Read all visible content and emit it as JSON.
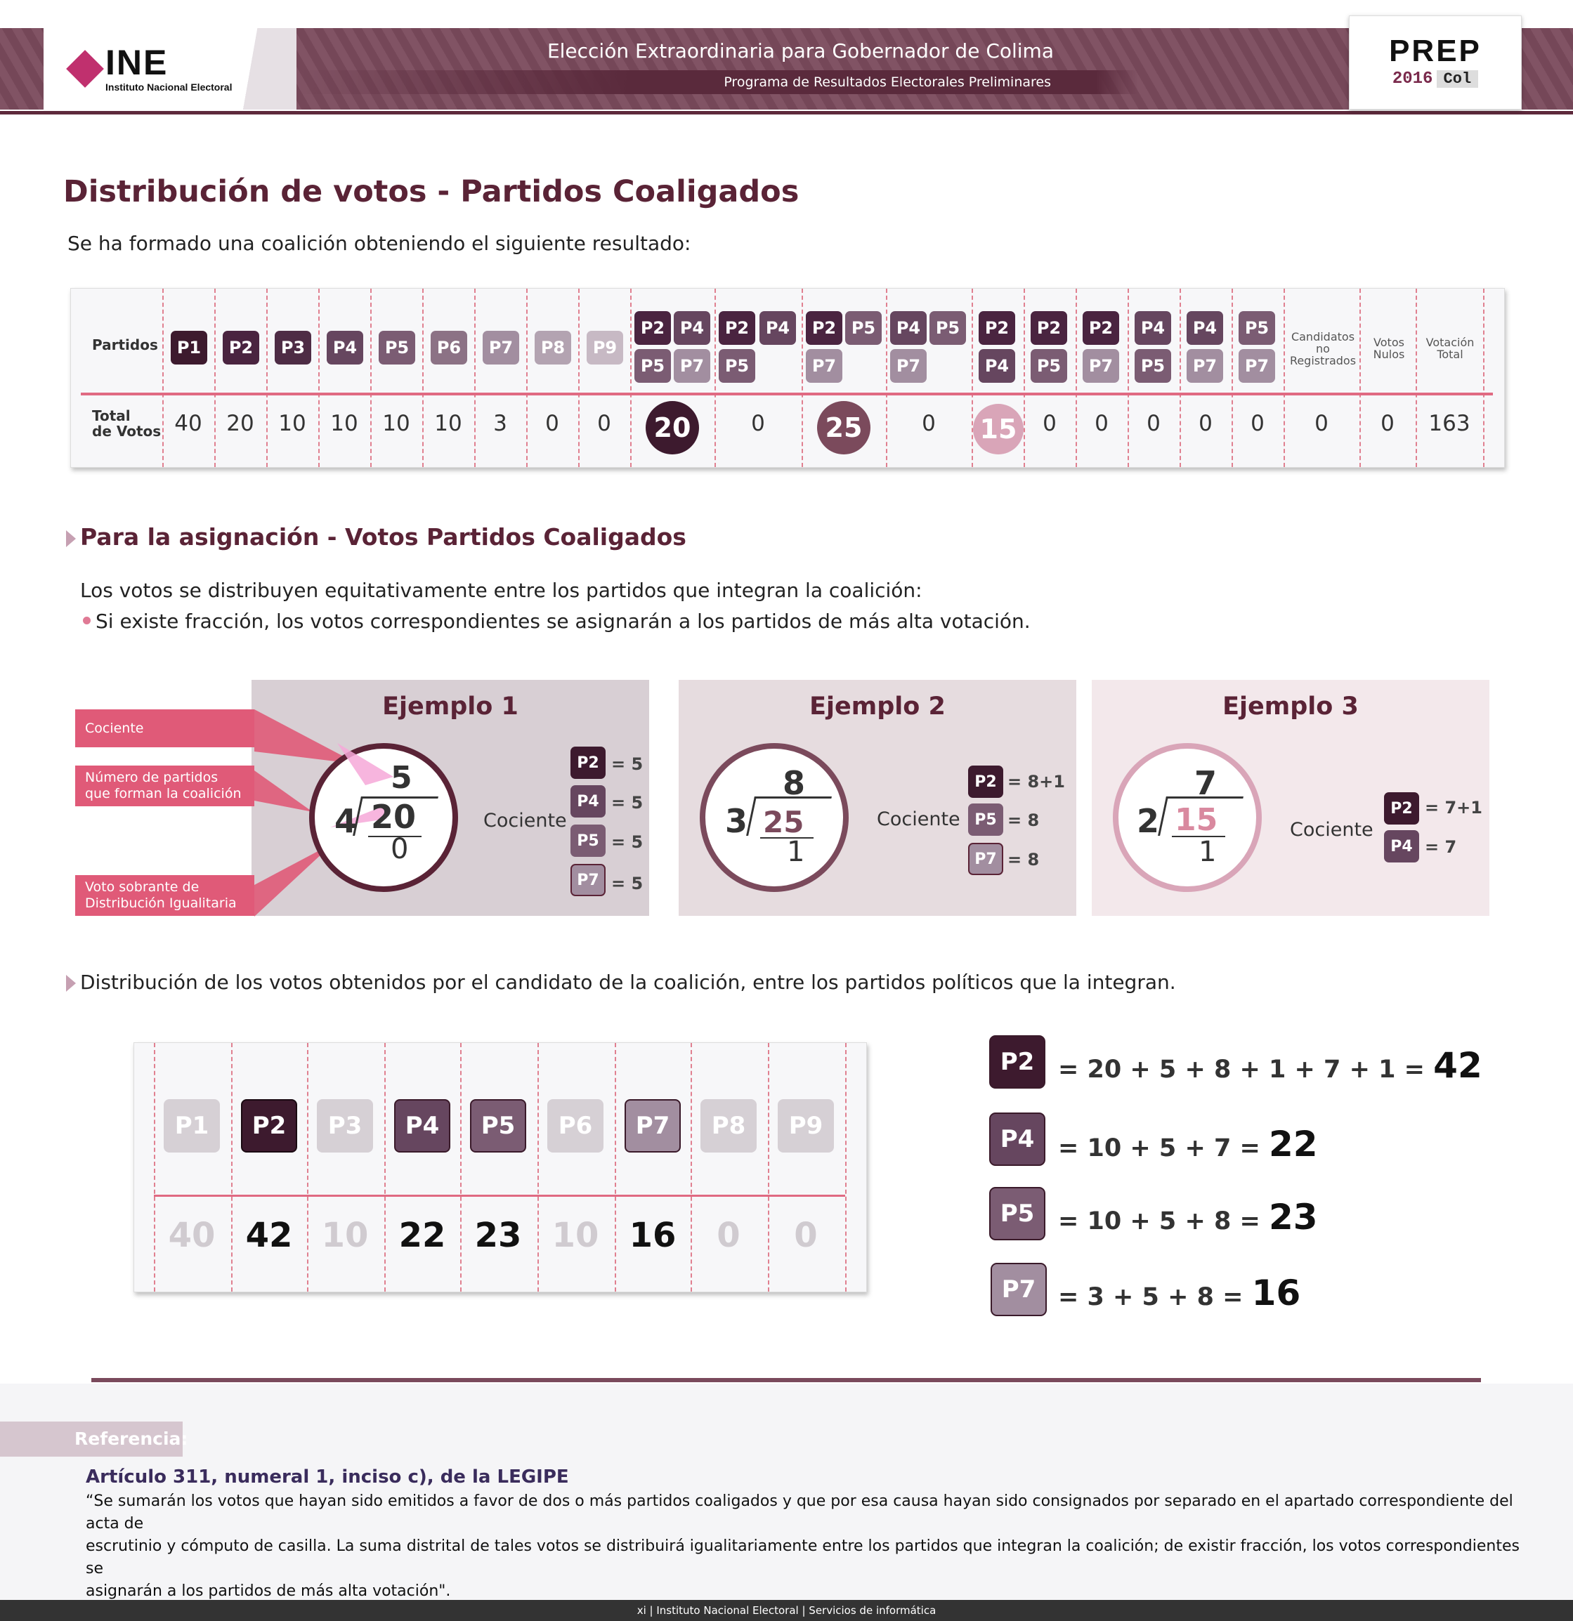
{
  "header": {
    "brand": "INE",
    "brand_sub": "Instituto Nacional Electoral",
    "title": "Elección Extraordinaria para Gobernador de Colima",
    "subtitle": "Programa de Resultados Electorales Preliminares",
    "prep": "PREP",
    "prep_year": "2016",
    "prep_state": "Col"
  },
  "page": {
    "title": "Distribución de votos - Partidos Coaligados",
    "intro": "Se ha formado una coalición obteniendo el siguiente resultado:"
  },
  "table": {
    "row_partidos": "Partidos",
    "row_votos_1": "Total",
    "row_votos_2": "de Votos",
    "c1": "P1",
    "c2": "P2",
    "c3": "P3",
    "c4": "P4",
    "c5": "P5",
    "c6": "P6",
    "c7": "P7",
    "c8": "P8",
    "c9": "P9",
    "v1": "40",
    "v2": "20",
    "v3": "10",
    "v4": "10",
    "v5": "10",
    "v6": "10",
    "v7": "3",
    "v8": "0",
    "v9": "0",
    "co_p2": "P2",
    "co_p4": "P4",
    "co_p5": "P5",
    "co_p7": "P7",
    "cv1": "20",
    "cv2": "0",
    "cv3": "25",
    "cv4": "0",
    "cv5": "15",
    "cv6": "0",
    "cv7": "0",
    "cv8": "0",
    "cv9": "0",
    "cv10": "0",
    "cand_1": "Candidatos",
    "cand_2": "no",
    "cand_3": "Registrados",
    "nulos_1": "Votos",
    "nulos_2": "Nulos",
    "total_1": "Votación",
    "total_2": "Total",
    "cand_v": "0",
    "nulos_v": "0",
    "total_v": "163"
  },
  "asignacion": {
    "title": "Para la asignación - Votos Partidos Coaligados",
    "line1": "Los votos se distribuyen equitativamente entre los partidos que integran la coalición:",
    "bullet": "Si existe fracción, los votos correspondientes se asignarán a los  partidos de más alta votación."
  },
  "labels": {
    "cociente": "Cociente",
    "num_partidos_1": "Número de partidos",
    "num_partidos_2": "que forman la coalición",
    "sobrante_1": "Voto sobrante de",
    "sobrante_2": "Distribución Igualitaria"
  },
  "ej1": {
    "title": "Ejemplo 1",
    "q": "5",
    "d": "4",
    "n": "20",
    "r": "0",
    "coc": "Cociente",
    "b1": "P2",
    "e1": "= 5",
    "b2": "P4",
    "e2": "= 5",
    "b3": "P5",
    "e3": "= 5",
    "b4": "P7",
    "e4": "= 5"
  },
  "ej2": {
    "title": "Ejemplo 2",
    "q": "8",
    "d": "3",
    "n": "25",
    "r": "1",
    "coc": "Cociente",
    "b1": "P2",
    "e1": "= 8+1",
    "b2": "P5",
    "e2": "= 8",
    "b3": "P7",
    "e3": "= 8"
  },
  "ej3": {
    "title": "Ejemplo 3",
    "q": "7",
    "d": "2",
    "n": "15",
    "r": "1",
    "coc": "Cociente",
    "b1": "P2",
    "e1": "= 7+1",
    "b2": "P4",
    "e2": "= 7"
  },
  "dist": {
    "text": "Distribución de los votos obtenidos por el candidato de la coalición, entre los partidos políticos que la integran.",
    "p1": "P1",
    "p2": "P2",
    "p3": "P3",
    "p4": "P4",
    "p5": "P5",
    "p6": "P6",
    "p7": "P7",
    "p8": "P8",
    "p9": "P9",
    "v1": "40",
    "v2": "42",
    "v3": "10",
    "v4": "22",
    "v5": "23",
    "v6": "10",
    "v7": "16",
    "v8": "0",
    "v9": "0"
  },
  "formulas": {
    "f1b": "P2",
    "f1": "= 20 + 5 + 8 + 1 + 7 + 1 =",
    "f1r": "42",
    "f2b": "P4",
    "f2": "= 10 + 5 + 7 =",
    "f2r": "22",
    "f3b": "P5",
    "f3": "= 10 + 5 + 8 =",
    "f3r": "23",
    "f4b": "P7",
    "f4": "= 3 + 5 + 8 =",
    "f4r": "16"
  },
  "referencia": {
    "tag": "Referencia:",
    "article": "Artículo 311, numeral 1, inciso c), de la LEGIPE",
    "quote_1": "“Se sumarán los votos que hayan sido emitidos a favor de dos o más partidos coaligados y que por esa causa hayan sido consignados por separado en el apartado correspondiente del acta de",
    "quote_2": "escrutinio y cómputo de casilla. La suma distrital de tales votos se distribuirá igualitariamente entre los partidos que integran la coalición; de existir fracción, los votos correspondientes se",
    "quote_3": "asignarán a los partidos de más alta votación\"."
  },
  "footer": {
    "text": "xi  | Instituto Nacional Electoral  | Servicios de informática"
  },
  "colors": {
    "p1": "#3d1a2e",
    "p2": "#4a2440",
    "p3": "#4e2c45",
    "p4": "#66465f",
    "p5": "#7b5c73",
    "p6": "#8c7285",
    "p7": "#a28ea0",
    "p8": "#b3a3b1",
    "p9": "#c7b9c4",
    "accent": "#e05a78"
  }
}
